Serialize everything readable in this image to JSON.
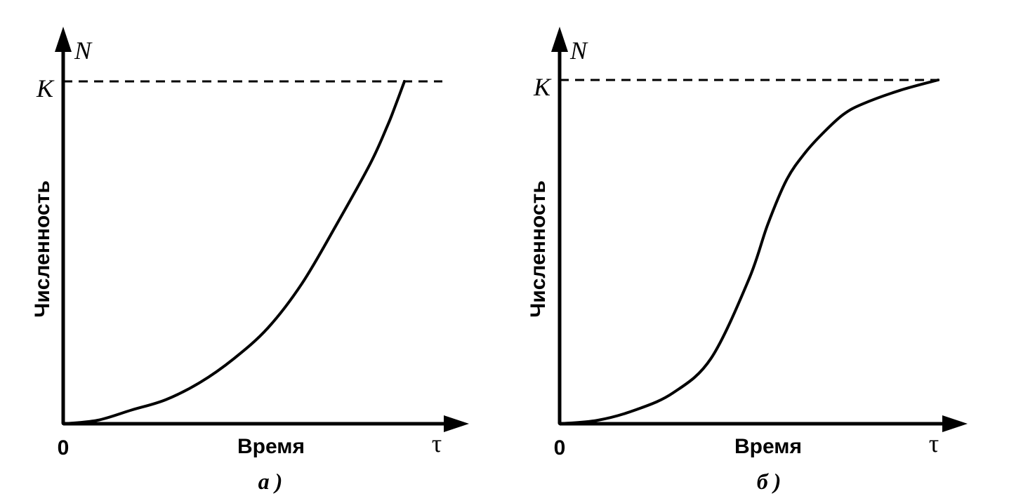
{
  "chart_data": [
    {
      "type": "line",
      "caption": "а )",
      "xlabel": "Время",
      "ylabel": "Численность",
      "x_axis_symbol": "τ",
      "y_axis_symbol": "N",
      "origin_label": "0",
      "asymptote_label": "K",
      "xlim": [
        0,
        1.1
      ],
      "ylim": [
        0,
        1.1
      ],
      "asymptote": 1.0,
      "series": [
        {
          "x": [
            0,
            0.1,
            0.2,
            0.3,
            0.4,
            0.5,
            0.6,
            0.7,
            0.8,
            0.9,
            0.95,
            0.97,
            1.0
          ],
          "values": [
            0,
            0.01,
            0.04,
            0.07,
            0.12,
            0.19,
            0.28,
            0.41,
            0.58,
            0.76,
            0.87,
            0.92,
            1.0
          ]
        }
      ]
    },
    {
      "type": "line",
      "caption": "б )",
      "xlabel": "Время",
      "ylabel": "Численность",
      "x_axis_symbol": "τ",
      "y_axis_symbol": "N",
      "origin_label": "0",
      "asymptote_label": "K",
      "xlim": [
        0,
        1.1
      ],
      "ylim": [
        0,
        1.1
      ],
      "asymptote": 1.0,
      "series": [
        {
          "x": [
            0,
            0.1,
            0.2,
            0.3,
            0.4,
            0.5,
            0.55,
            0.6,
            0.65,
            0.7,
            0.75,
            0.8,
            0.9,
            1.0
          ],
          "values": [
            0,
            0.01,
            0.04,
            0.09,
            0.19,
            0.42,
            0.58,
            0.71,
            0.79,
            0.85,
            0.9,
            0.93,
            0.97,
            1.0
          ]
        }
      ]
    }
  ]
}
